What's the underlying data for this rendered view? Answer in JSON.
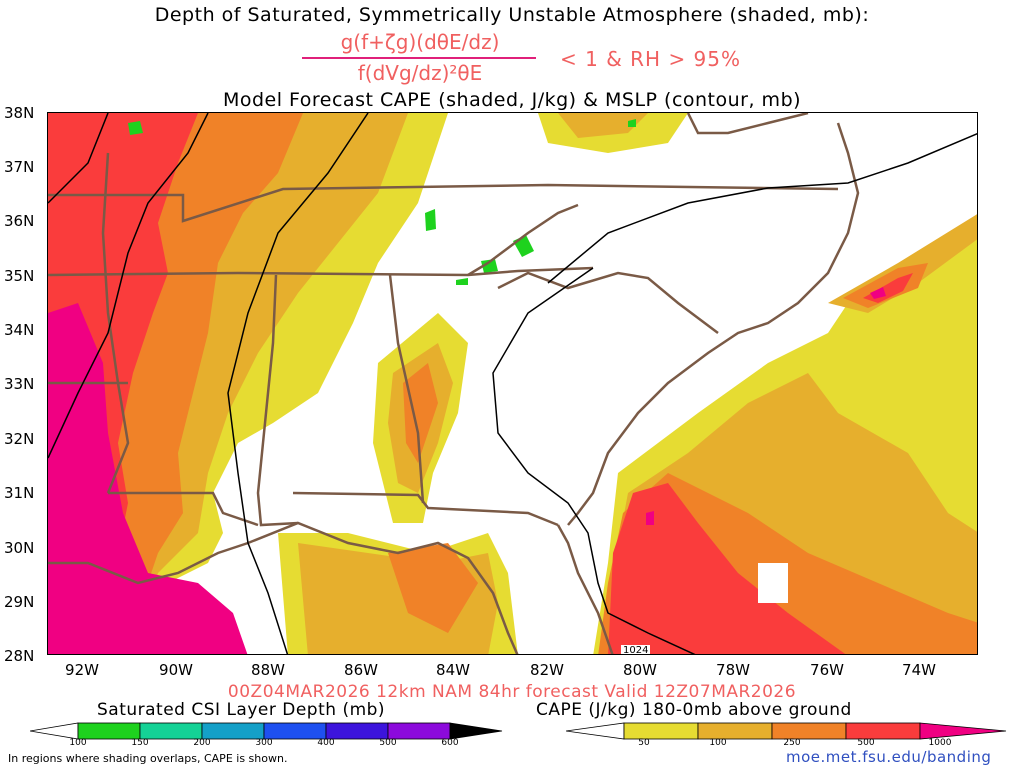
{
  "header": {
    "title_line1": "Depth of Saturated, Symmetrically Unstable Atmosphere (shaded, mb):",
    "numerator": "g(f+ζg)(dθE/dz)",
    "denominator": "f(dVg/dz)²θE",
    "condition": "< 1 & RH > 95%",
    "title_line2": "Model Forecast CAPE (shaded, J/kg) & MSLP (contour, mb)"
  },
  "map": {
    "lat_labels": [
      "38N",
      "37N",
      "36N",
      "35N",
      "34N",
      "33N",
      "32N",
      "31N",
      "30N",
      "29N",
      "28N"
    ],
    "lon_labels": [
      "92W",
      "90W",
      "88W",
      "86W",
      "84W",
      "82W",
      "80W",
      "78W",
      "76W",
      "74W"
    ],
    "mslp_label": "1024",
    "colors": {
      "cape_50": "#e6dc32",
      "cape_100": "#e6af2d",
      "cape_250": "#f08228",
      "cape_500": "#fa3c3c",
      "cape_1000": "#f00082",
      "csi_green": "#1ed21e",
      "border": "#7a5a46"
    }
  },
  "footer": {
    "valid": "00Z04MAR2026 12km NAM 84hr forecast Valid 12Z07MAR2026",
    "csi_label": "Saturated CSI Layer Depth (mb)",
    "cape_label": "CAPE (J/kg) 180-0mb above ground",
    "csi_ticks": [
      "100",
      "150",
      "200",
      "300",
      "400",
      "500",
      "600"
    ],
    "cape_ticks": [
      "50",
      "100",
      "250",
      "500",
      "1000"
    ],
    "footnote": "In regions where shading overlaps, CAPE is shown.",
    "credit": "moe.met.fsu.edu/banding"
  }
}
